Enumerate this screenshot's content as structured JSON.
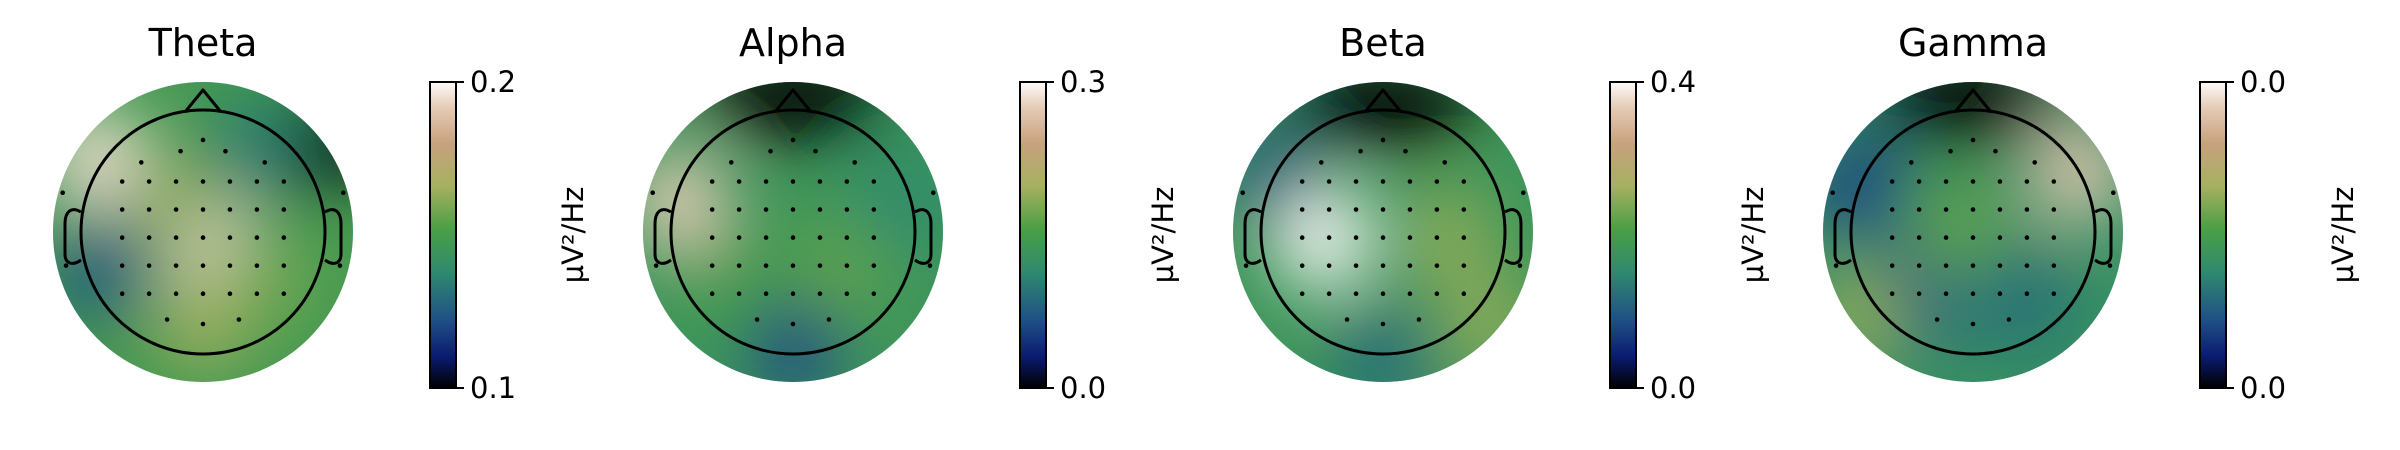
{
  "chart_data": [
    {
      "type": "heatmap",
      "subtype": "topomap",
      "title": "Theta",
      "colorbar": {
        "label": "µV²/Hz",
        "ticks": [
          "0.1",
          "0.2"
        ],
        "cmap": "gist_earth"
      },
      "hotspots": [
        {
          "u": 0.5,
          "v": 0.52,
          "level": 0.95
        },
        {
          "u": 0.14,
          "v": 0.25,
          "level": 0.95
        },
        {
          "u": 0.5,
          "v": 0.8,
          "level": 0.65
        },
        {
          "u": 0.4,
          "v": 0.4,
          "level": 0.62
        },
        {
          "u": 0.72,
          "v": 0.66,
          "level": 0.58
        },
        {
          "u": 0.16,
          "v": 0.62,
          "level": 0.25
        },
        {
          "u": 0.82,
          "v": 0.22,
          "level": 0.0
        },
        {
          "u": 0.66,
          "v": 0.22,
          "level": 0.35
        }
      ],
      "base_level": 0.48
    },
    {
      "type": "heatmap",
      "subtype": "topomap",
      "title": "Alpha",
      "colorbar": {
        "label": "µV²/Hz",
        "ticks": [
          "0.0",
          "0.3"
        ],
        "cmap": "gist_earth"
      },
      "hotspots": [
        {
          "u": 0.5,
          "v": 0.05,
          "level": 0.0
        },
        {
          "u": 0.12,
          "v": 0.4,
          "level": 0.92
        },
        {
          "u": 0.5,
          "v": 0.88,
          "level": 0.2
        },
        {
          "u": 0.66,
          "v": 0.62,
          "level": 0.55
        },
        {
          "u": 0.3,
          "v": 0.66,
          "level": 0.5
        },
        {
          "u": 0.86,
          "v": 0.4,
          "level": 0.38
        }
      ],
      "base_level": 0.45
    },
    {
      "type": "heatmap",
      "subtype": "topomap",
      "title": "Beta",
      "colorbar": {
        "label": "µV²/Hz",
        "ticks": [
          "0.0",
          "0.4"
        ],
        "cmap": "gist_earth"
      },
      "hotspots": [
        {
          "u": 0.5,
          "v": 0.08,
          "level": 0.0
        },
        {
          "u": 0.3,
          "v": 0.52,
          "level": 1.0
        },
        {
          "u": 0.72,
          "v": 0.52,
          "level": 0.62
        },
        {
          "u": 0.86,
          "v": 0.82,
          "level": 0.62
        },
        {
          "u": 0.12,
          "v": 0.3,
          "level": 0.28
        },
        {
          "u": 0.5,
          "v": 0.92,
          "level": 0.3
        }
      ],
      "base_level": 0.45
    },
    {
      "type": "heatmap",
      "subtype": "topomap",
      "title": "Gamma",
      "colorbar": {
        "label": "µV²/Hz",
        "ticks": [
          "0.0",
          "0.0"
        ],
        "cmap": "gist_earth"
      },
      "hotspots": [
        {
          "u": 0.5,
          "v": 0.06,
          "level": 0.0
        },
        {
          "u": 0.85,
          "v": 0.3,
          "level": 0.9
        },
        {
          "u": 0.12,
          "v": 0.35,
          "level": 0.2
        },
        {
          "u": 0.28,
          "v": 0.72,
          "level": 0.22
        },
        {
          "u": 0.66,
          "v": 0.72,
          "level": 0.3
        },
        {
          "u": 0.12,
          "v": 0.78,
          "level": 0.62
        },
        {
          "u": 0.45,
          "v": 0.48,
          "level": 0.55
        }
      ],
      "base_level": 0.42
    }
  ]
}
